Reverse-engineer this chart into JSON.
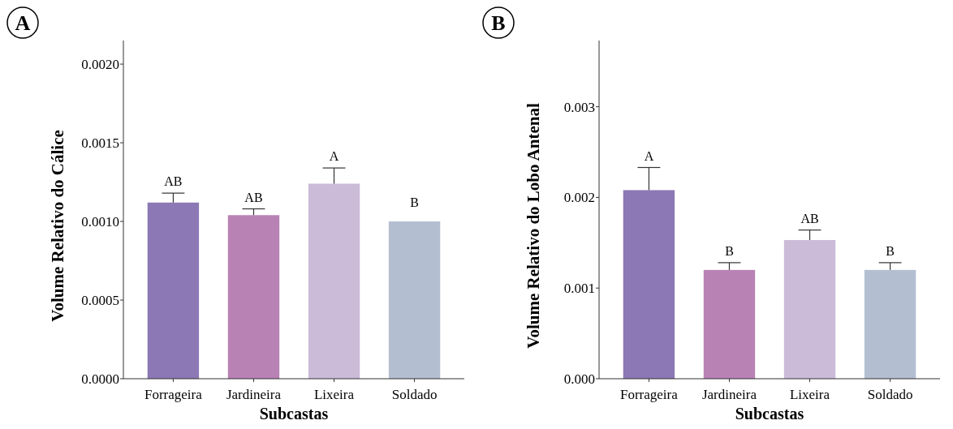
{
  "chart_data": [
    {
      "type": "bar",
      "title": "A",
      "xlabel": "Subcastas",
      "ylabel": "Volume Relativo do Cálice",
      "categories": [
        "Forrageira",
        "Jardineira",
        "Lixeira",
        "Soldado"
      ],
      "values": [
        0.00112,
        0.00104,
        0.00124,
        0.001
      ],
      "errors": [
        [
          0.00112,
          0.00118
        ],
        [
          0.00104,
          0.00108
        ],
        [
          0.00124,
          0.00134
        ],
        null
      ],
      "colors": [
        "#8c78b4",
        "#b982b5",
        "#cbbbd9",
        "#b3bfd0"
      ],
      "ylim": [
        0,
        0.00215
      ],
      "yticks": [
        {
          "value": 0,
          "label": "0.0000"
        },
        {
          "value": 0.0005,
          "label": "0.0005"
        },
        {
          "value": 0.001,
          "label": "0.0010"
        },
        {
          "value": 0.0015,
          "label": "0.0015"
        },
        {
          "value": 0.002,
          "label": "0.0020"
        }
      ],
      "annotations": [
        "AB",
        "AB",
        "A",
        "B"
      ],
      "grid": false
    },
    {
      "type": "bar",
      "title": "B",
      "xlabel": "Subcastas",
      "ylabel": "Volume Relativo do Lobo Antenal",
      "categories": [
        "Forrageira",
        "Jardineira",
        "Lixeira",
        "Soldado"
      ],
      "values": [
        0.00208,
        0.0012,
        0.00153,
        0.0012
      ],
      "errors": [
        [
          0.00208,
          0.00233
        ],
        [
          0.0012,
          0.00128
        ],
        [
          0.00153,
          0.00164
        ],
        [
          0.0012,
          0.00128
        ]
      ],
      "colors": [
        "#8c78b4",
        "#b982b5",
        "#cbbbd9",
        "#b3bfd0"
      ],
      "ylim": [
        0,
        0.00373
      ],
      "yticks": [
        {
          "value": 0,
          "label": "0.000"
        },
        {
          "value": 0.001,
          "label": "0.001"
        },
        {
          "value": 0.002,
          "label": "0.002"
        },
        {
          "value": 0.003,
          "label": "0.003"
        }
      ],
      "annotations": [
        "A",
        "B",
        "AB",
        "B"
      ],
      "grid": false
    }
  ]
}
